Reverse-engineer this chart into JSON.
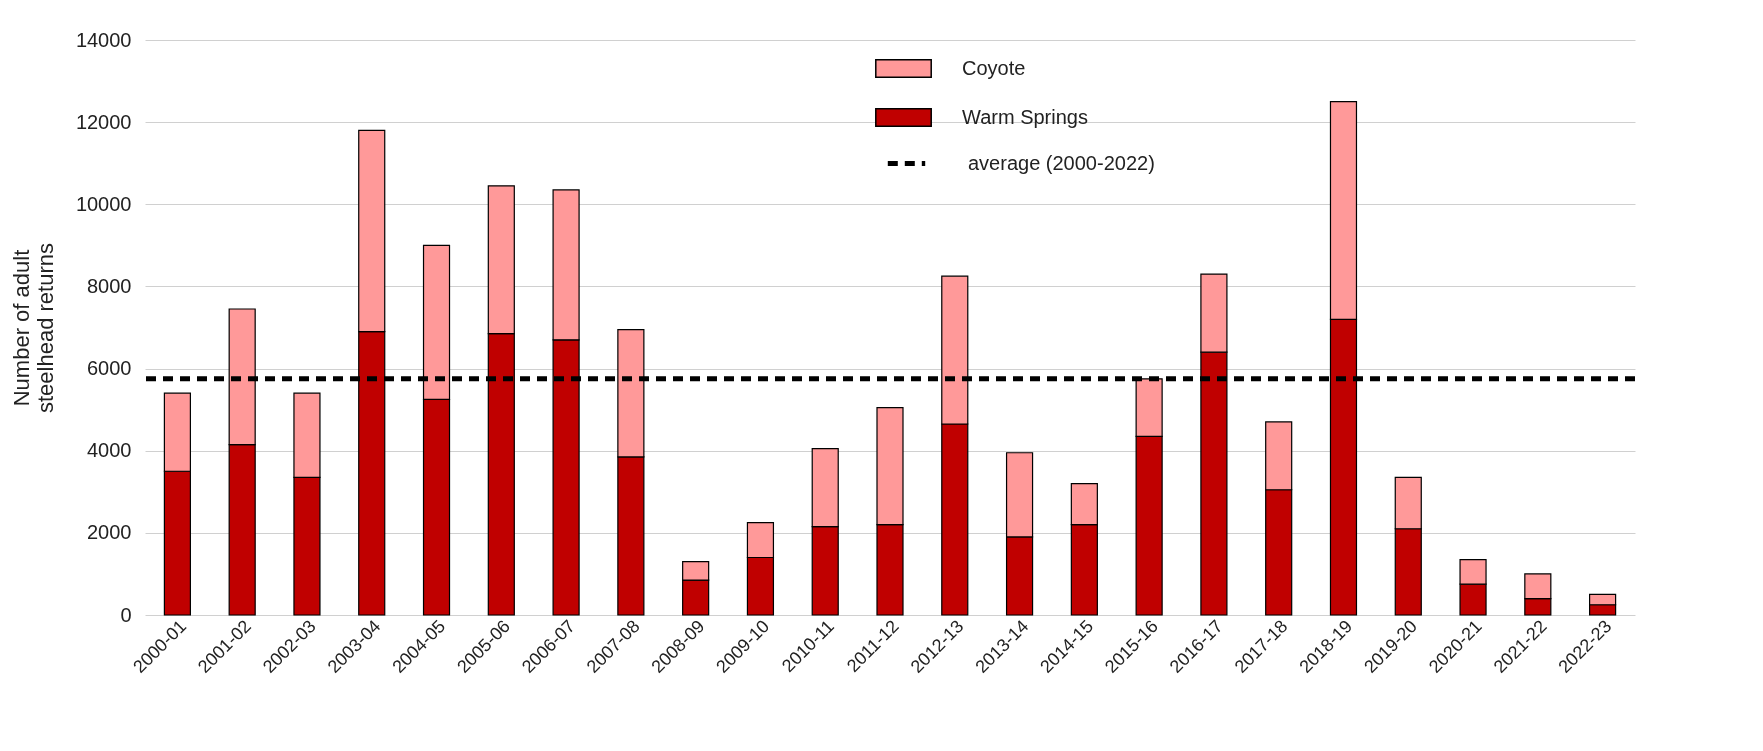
{
  "chart_data": {
    "type": "bar",
    "ylabel": "Number of adult steelhead returns",
    "stacked": true,
    "categories": [
      "2000-01",
      "2001-02",
      "2002-03",
      "2003-04",
      "2004-05",
      "2005-06",
      "2006-07",
      "2007-08",
      "2008-09",
      "2009-10",
      "2010-11",
      "2011-12",
      "2012-13",
      "2013-14",
      "2014-15",
      "2015-16",
      "2016-17",
      "2017-18",
      "2018-19",
      "2019-20",
      "2020-21",
      "2021-22",
      "2022-23"
    ],
    "series": [
      {
        "name": "Warm Springs",
        "color": "#c00000",
        "values": [
          3500,
          4150,
          3350,
          6900,
          5250,
          6850,
          6700,
          3850,
          850,
          1400,
          2150,
          2200,
          4650,
          1900,
          2200,
          4350,
          6400,
          3050,
          7200,
          2100,
          750,
          400,
          250
        ]
      },
      {
        "name": "Coyote",
        "color": "#ff9999",
        "values": [
          1900,
          3300,
          2050,
          4900,
          3750,
          3600,
          3650,
          3100,
          450,
          850,
          1900,
          2850,
          3600,
          2050,
          1000,
          1400,
          1900,
          1650,
          5300,
          1250,
          600,
          600,
          250
        ]
      }
    ],
    "ylim": [
      0,
      14000
    ],
    "yticks": [
      0,
      2000,
      4000,
      6000,
      8000,
      10000,
      12000,
      14000
    ],
    "grid": "y",
    "legend": "top right",
    "ref_lines": [
      {
        "axis": "y",
        "value": 5750,
        "label": "average (2000-2022)",
        "color": "#000000",
        "line_style": "dashed"
      }
    ]
  }
}
